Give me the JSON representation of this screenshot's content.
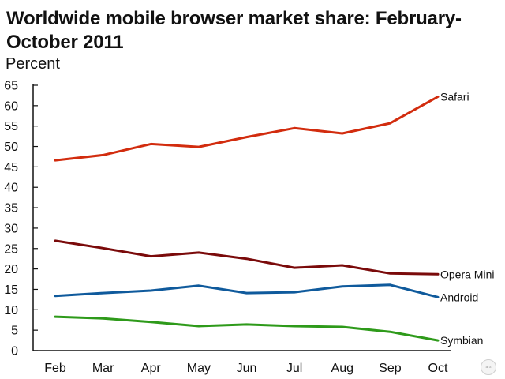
{
  "chart_data": {
    "type": "line",
    "title": "Worldwide mobile browser market share: February-October 2011",
    "ylabel": "Percent",
    "xlabel": "",
    "categories": [
      "Feb",
      "Mar",
      "Apr",
      "May",
      "Jun",
      "Jul",
      "Aug",
      "Sep",
      "Oct"
    ],
    "ylim": [
      0,
      65
    ],
    "yticks": [
      0,
      5,
      10,
      15,
      20,
      25,
      30,
      35,
      40,
      45,
      50,
      55,
      60,
      65
    ],
    "grid": false,
    "legend": "direct labels at right end of lines",
    "series": [
      {
        "name": "Safari",
        "color": "#d22c0e",
        "values": [
          46.6,
          47.9,
          50.6,
          49.9,
          52.3,
          54.5,
          53.2,
          55.7,
          62.2
        ]
      },
      {
        "name": "Opera Mini",
        "color": "#7a0a0a",
        "values": [
          26.9,
          25.1,
          23.1,
          24.0,
          22.5,
          20.3,
          20.9,
          18.9,
          18.7
        ]
      },
      {
        "name": "Android",
        "color": "#0f5a9c",
        "values": [
          13.4,
          14.1,
          14.7,
          15.9,
          14.1,
          14.3,
          15.7,
          16.1,
          13.1
        ]
      },
      {
        "name": "Symbian",
        "color": "#2e9a1a",
        "values": [
          8.3,
          7.9,
          7.0,
          6.0,
          6.4,
          6.0,
          5.8,
          4.6,
          2.5
        ]
      }
    ]
  },
  "watermark_text": "ars"
}
